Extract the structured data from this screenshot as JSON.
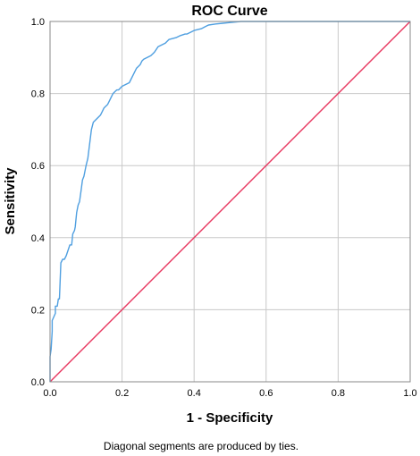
{
  "chart_data": {
    "type": "line",
    "title": "ROC Curve",
    "xlabel": "1 - Specificity",
    "ylabel": "Sensitivity",
    "footnote": "Diagonal segments are produced by ties.",
    "xlim": [
      0,
      1
    ],
    "ylim": [
      0,
      1
    ],
    "xticks": [
      "0.0",
      "0.2",
      "0.4",
      "0.6",
      "0.8",
      "1.0"
    ],
    "yticks": [
      "0.0",
      "0.2",
      "0.4",
      "0.6",
      "0.8",
      "1.0"
    ],
    "grid": true,
    "colors": {
      "roc": "#4f9fe0",
      "reference": "#e8365f",
      "grid": "#c8c8c8",
      "frame": "#888888"
    },
    "series": [
      {
        "color": "#4f9fe0",
        "x": [
          0.0,
          0.0,
          0.003,
          0.006,
          0.006,
          0.015,
          0.015,
          0.02,
          0.023,
          0.026,
          0.03,
          0.035,
          0.04,
          0.045,
          0.055,
          0.06,
          0.063,
          0.068,
          0.07,
          0.074,
          0.078,
          0.082,
          0.086,
          0.09,
          0.094,
          0.098,
          0.1,
          0.105,
          0.11,
          0.115,
          0.12,
          0.13,
          0.14,
          0.145,
          0.15,
          0.16,
          0.165,
          0.17,
          0.175,
          0.18,
          0.185,
          0.19,
          0.2,
          0.21,
          0.22,
          0.225,
          0.235,
          0.24,
          0.25,
          0.255,
          0.26,
          0.27,
          0.28,
          0.285,
          0.29,
          0.3,
          0.32,
          0.33,
          0.35,
          0.36,
          0.375,
          0.38,
          0.39,
          0.4,
          0.42,
          0.43,
          0.44,
          0.46,
          0.48,
          0.5,
          0.53,
          0.56,
          0.6,
          0.65,
          0.7,
          0.8,
          1.0
        ],
        "y": [
          0.0,
          0.07,
          0.09,
          0.14,
          0.17,
          0.19,
          0.21,
          0.21,
          0.23,
          0.23,
          0.33,
          0.34,
          0.34,
          0.35,
          0.38,
          0.38,
          0.41,
          0.42,
          0.43,
          0.47,
          0.49,
          0.5,
          0.53,
          0.56,
          0.57,
          0.59,
          0.6,
          0.62,
          0.66,
          0.7,
          0.72,
          0.73,
          0.74,
          0.75,
          0.76,
          0.77,
          0.78,
          0.79,
          0.8,
          0.805,
          0.81,
          0.81,
          0.82,
          0.825,
          0.83,
          0.84,
          0.86,
          0.87,
          0.88,
          0.89,
          0.895,
          0.9,
          0.905,
          0.91,
          0.915,
          0.93,
          0.94,
          0.95,
          0.955,
          0.96,
          0.965,
          0.965,
          0.97,
          0.975,
          0.98,
          0.985,
          0.99,
          0.993,
          0.995,
          0.997,
          1.0,
          1.0,
          1.0,
          1.0,
          1.0,
          1.0,
          1.0
        ]
      },
      {
        "color": "#e8365f",
        "x": [
          0,
          1
        ],
        "y": [
          0,
          1
        ]
      }
    ]
  }
}
